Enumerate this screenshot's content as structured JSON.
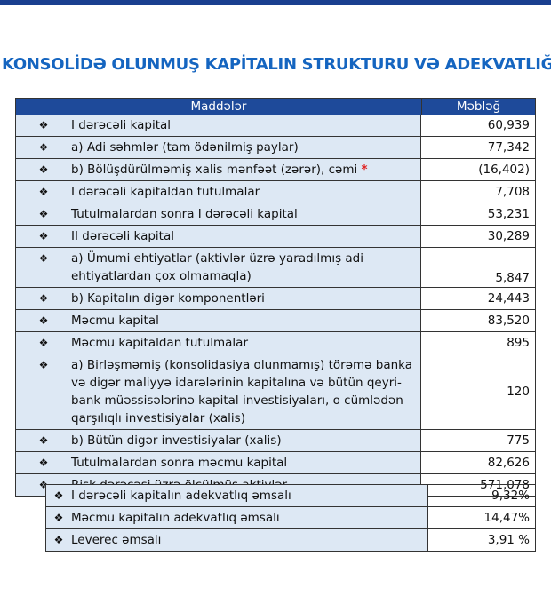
{
  "title": "KONSOLİDƏ OLUNMUŞ KAPİTALIN STRUKTURU VƏ ADEKVATLIĞ",
  "table": {
    "header": [
      "Maddələr",
      "Məbləğ"
    ],
    "rows": [
      {
        "label": "I dərəcəli kapital",
        "value": "60,939"
      },
      {
        "label": "a) Adi səhmlər (tam ödənilmiş paylar)",
        "value": "77,342"
      },
      {
        "label": "b)   Bölüşdürülməmiş xalis mənfəət (zərər), cəmi",
        "note_mark": "*",
        "value": "(16,402)"
      },
      {
        "label": "I dərəcəli kapitaldan tutulmalar",
        "value": "7,708"
      },
      {
        "label": "Tutulmalardan  sonra I dərəcəli kapital",
        "value": "53,231"
      },
      {
        "label": "II dərəcəli kapital",
        "value": "30,289"
      },
      {
        "label": "a) Ümumi ehtiyatlar (aktivlər üzrə yaradılmış adi ehtiyatlardan çox olmamaqla)",
        "value": "5,847"
      },
      {
        "label": "b)  Kapitalın digər komponentləri",
        "value": "24,443"
      },
      {
        "label": "Məcmu kapital",
        "value": "83,520"
      },
      {
        "label": "Məcmu kapitaldan tutulmalar",
        "value": "895"
      },
      {
        "label": "a)   Birləşməmiş (konsolidasiya olunmamış) törəmə banka və digər maliyyə idarələrinin kapitalına və bütün qeyri-bank müəssisələrinə kapital investisiyaları, o cümlədən qarşılıqlı investisiyalar (xalis)",
        "value": "120"
      },
      {
        "label": "b)      Bütün digər investisiyalar (xalis)",
        "value": "775"
      },
      {
        "label": "Tutulmalardan sonra məcmu kapital",
        "value": "82,626"
      },
      {
        "label": "Risk dərəcəsi üzrə ölçülmüş aktivlər",
        "value": "571,078"
      }
    ]
  },
  "ratios": {
    "rows": [
      {
        "label": "I dərəcəli kapitalın adekvatlıq əmsalı",
        "value": "9,32%"
      },
      {
        "label": "Məcmu kapitalın adekvatlıq əmsalı",
        "value": "14,47%"
      },
      {
        "label": "Leverec əmsalı",
        "value": "3,91 %"
      }
    ]
  }
}
